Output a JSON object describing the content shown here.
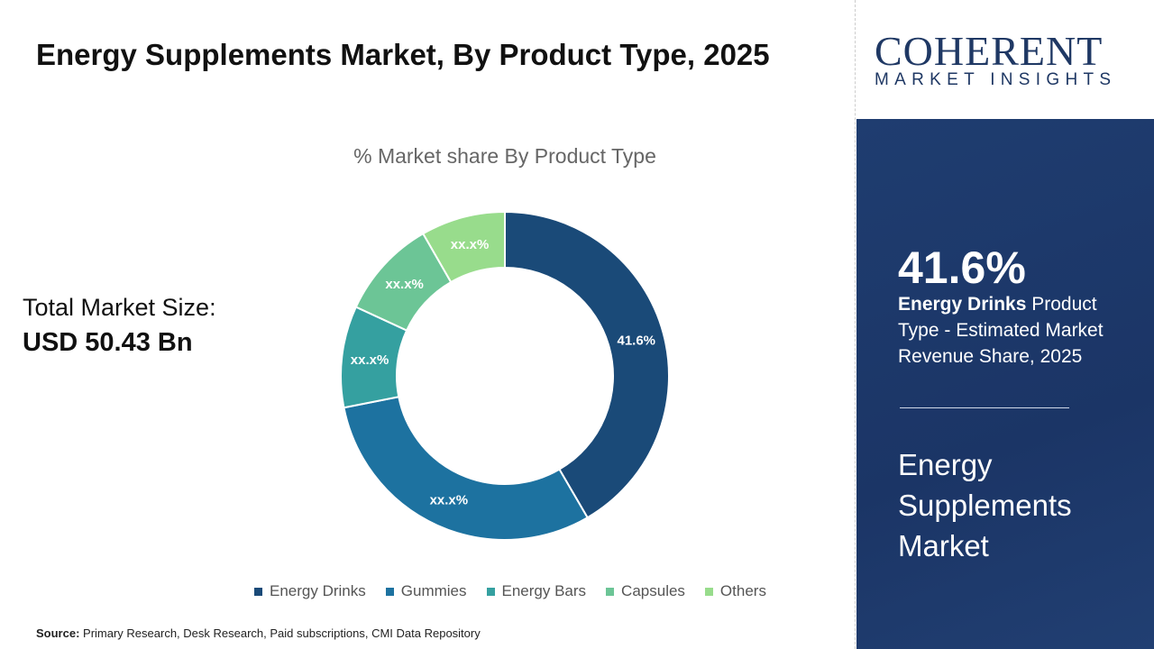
{
  "title": "Energy Supplements Market, By Product Type, 2025",
  "total_market_label": "Total Market Size:",
  "total_market_value": "USD 50.43 Bn",
  "source_label": "Source:",
  "source_text": " Primary Research, Desk Research, Paid subscriptions, CMI Data Repository",
  "logo": {
    "line1": "COHERENT",
    "line2": "MARKET INSIGHTS"
  },
  "highlight": {
    "value": "41.6%",
    "bold": "Energy Drinks",
    "rest": " Product Type - Estimated Market Revenue Share, 2025",
    "market_name": "Energy Supplements Market"
  },
  "chart_data": {
    "type": "pie",
    "subtype": "donut",
    "title": "% Market share By Product Type",
    "categories": [
      "Energy Drinks",
      "Gummies",
      "Energy Bars",
      "Capsules",
      "Others"
    ],
    "values": [
      41.6,
      30.3,
      10.0,
      9.8,
      8.3
    ],
    "labels": [
      "41.6%",
      "xx.x%",
      "xx.x%",
      "xx.x%",
      "xx.x%"
    ],
    "colors": [
      "#1a4a78",
      "#1d72a0",
      "#35a0a0",
      "#6cc596",
      "#98dc8c"
    ],
    "legend": "bottom"
  }
}
